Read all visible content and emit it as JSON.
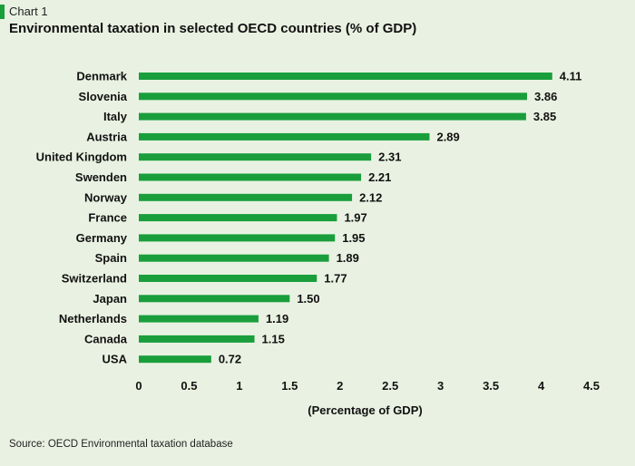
{
  "header": {
    "label": "Chart 1",
    "title": "Environmental taxation in selected OECD countries (% of GDP)"
  },
  "footer": {
    "source": "Source: OECD Environmental taxation database"
  },
  "colors": {
    "background": "#e9f2e2",
    "bar": "#1a9e3c",
    "accent": "#1a9e3c"
  },
  "chart_data": {
    "type": "bar",
    "orientation": "horizontal",
    "categories": [
      "Denmark",
      "Slovenia",
      "Italy",
      "Austria",
      "United Kingdom",
      "Swenden",
      "Norway",
      "France",
      "Germany",
      "Spain",
      "Switzerland",
      "Japan",
      "Netherlands",
      "Canada",
      "USA"
    ],
    "values": [
      4.11,
      3.86,
      3.85,
      2.89,
      2.31,
      2.21,
      2.12,
      1.97,
      1.95,
      1.89,
      1.77,
      1.5,
      1.19,
      1.15,
      0.72
    ],
    "value_labels": [
      "4.11",
      "3.86",
      "3.85",
      "2.89",
      "2.31",
      "2.21",
      "2.12",
      "1.97",
      "1.95",
      "1.89",
      "1.77",
      "1.50",
      "1.19",
      "1.15",
      "0.72"
    ],
    "xticks": [
      "0",
      "0.5",
      "1",
      "1.5",
      "2",
      "2.5",
      "3",
      "3.5",
      "4",
      "4.5"
    ],
    "xlim": [
      0,
      4.5
    ],
    "xlabel": "(Percentage of GDP)",
    "ylabel": "",
    "grid": false,
    "legend": "none"
  }
}
